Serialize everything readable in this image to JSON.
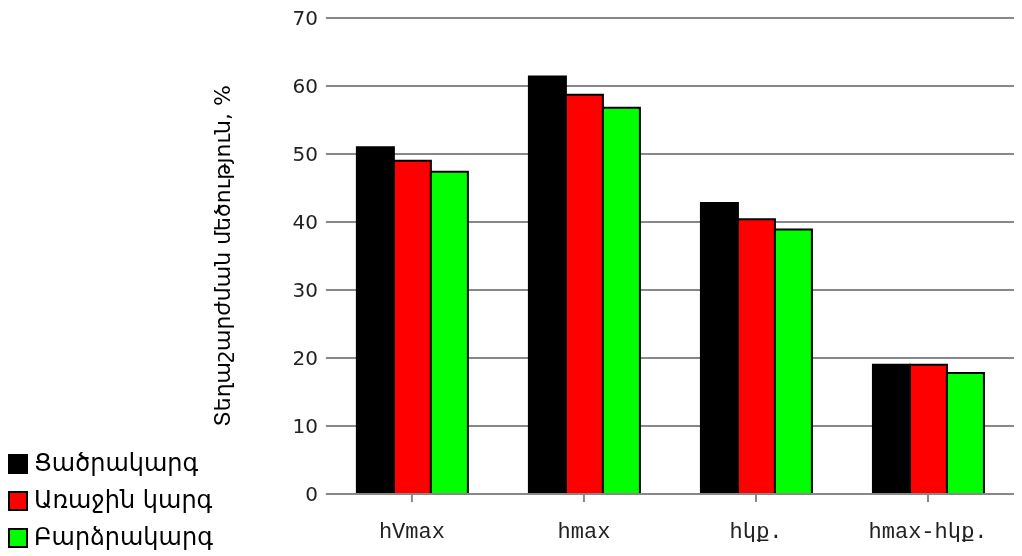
{
  "chart_data": {
    "type": "bar",
    "ylabel": "Տեղաշարժման մեծություն, %",
    "categories": [
      "hVmax",
      "hmax",
      "hկք.",
      "hmax-hկք."
    ],
    "series": [
      {
        "name": "Ցածրակարգ",
        "color": "#000000",
        "values": [
          51.0,
          61.4,
          42.8,
          19.0
        ]
      },
      {
        "name": "Առաջին կարգ",
        "color": "#ff0000",
        "values": [
          49.0,
          58.7,
          40.4,
          19.0
        ]
      },
      {
        "name": "Բարձրակարգ",
        "color": "#00ff00",
        "values": [
          47.4,
          56.8,
          38.9,
          17.8
        ]
      }
    ],
    "ylim": [
      0,
      70
    ],
    "yticks": [
      0,
      10,
      20,
      30,
      40,
      50,
      60,
      70
    ],
    "grid": "y",
    "legend": "bottom left"
  }
}
